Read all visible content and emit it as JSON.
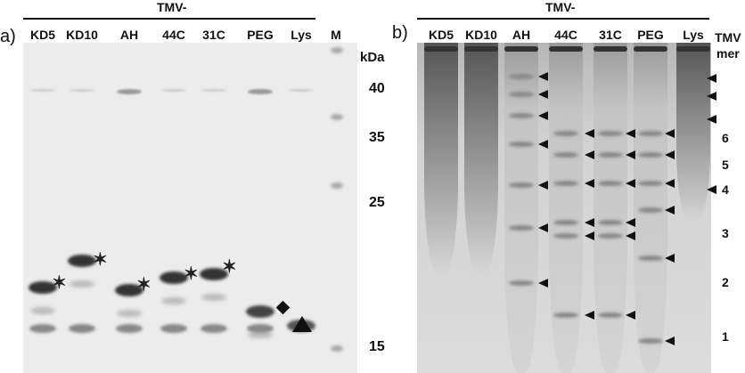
{
  "panel_a": {
    "label": "a)",
    "header": "TMV-",
    "lanes": [
      "KD5",
      "KD10",
      "AH",
      "44C",
      "31C",
      "PEG",
      "Lys",
      "M"
    ],
    "unit": "kDa",
    "markers": [
      "40",
      "35",
      "25",
      "15"
    ]
  },
  "panel_b": {
    "label": "b)",
    "header": "TMV-",
    "lanes": [
      "KD5",
      "KD10",
      "AH",
      "44C",
      "31C",
      "PEG",
      "Lys"
    ],
    "axis_title_1": "TMV",
    "axis_title_2": "mer",
    "mers": [
      "6",
      "5",
      "4",
      "3",
      "2",
      "1"
    ]
  }
}
